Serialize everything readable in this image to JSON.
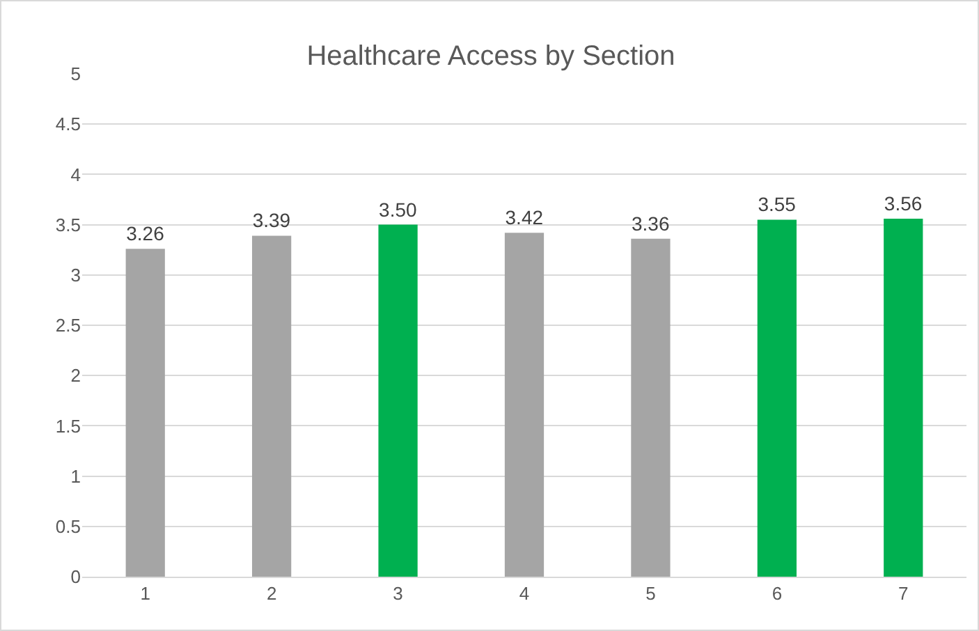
{
  "chart_data": {
    "type": "bar",
    "title": "Healthcare Access by Section",
    "categories": [
      "1",
      "2",
      "3",
      "4",
      "5",
      "6",
      "7"
    ],
    "values": [
      3.26,
      3.39,
      3.5,
      3.42,
      3.36,
      3.55,
      3.56
    ],
    "colors": [
      "#a5a5a5",
      "#a5a5a5",
      "#00b050",
      "#a5a5a5",
      "#a5a5a5",
      "#00b050",
      "#00b050"
    ],
    "value_labels": [
      "3.26",
      "3.39",
      "3.50",
      "3.42",
      "3.36",
      "3.55",
      "3.56"
    ],
    "ylim": [
      0,
      5
    ],
    "yticks": [
      0,
      0.5,
      1,
      1.5,
      2,
      2.5,
      3,
      3.5,
      4,
      4.5,
      5
    ],
    "grid": "y",
    "legend": false
  }
}
